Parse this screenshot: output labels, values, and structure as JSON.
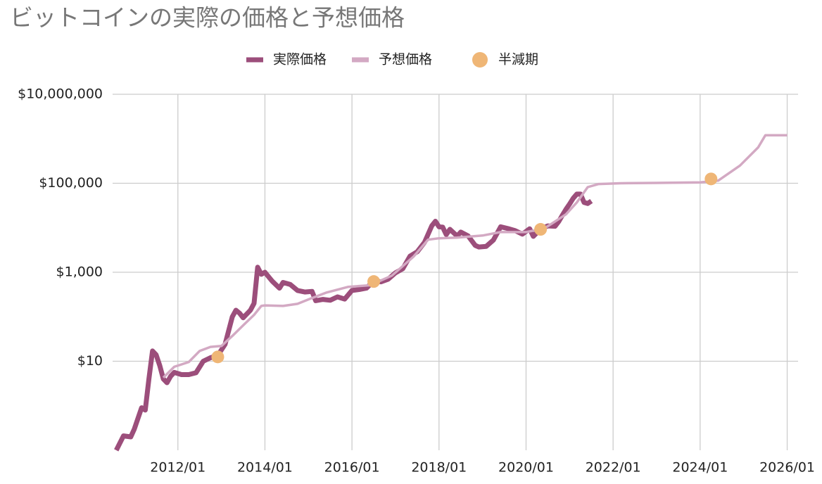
{
  "chart_data": {
    "type": "line",
    "title": "ビットコインの実際の価格と予想価格",
    "log_y": true,
    "grid": true,
    "legend": "top",
    "xlim": [
      "2010/07",
      "2026/04"
    ],
    "xticks": [
      "2012/01",
      "2014/01",
      "2016/01",
      "2018/01",
      "2020/01",
      "2022/01",
      "2024/01",
      "2026/01"
    ],
    "ylim": [
      0.1,
      10000000
    ],
    "yticks": [
      {
        "value": 10,
        "label": "$10"
      },
      {
        "value": 1000,
        "label": "$1,000"
      },
      {
        "value": 100000,
        "label": "$100,000"
      },
      {
        "value": 10000000,
        "label": "$10,000,000"
      }
    ],
    "series": [
      {
        "name": "実際価格",
        "color": "#9c4e7b",
        "style": "line",
        "x": [
          "2010/08",
          "2010/10",
          "2010/12",
          "2011/01",
          "2011/03",
          "2011/04",
          "2011/05",
          "2011/06",
          "2011/07",
          "2011/08",
          "2011/09",
          "2011/10",
          "2011/11",
          "2011/12",
          "2012/02",
          "2012/04",
          "2012/06",
          "2012/08",
          "2012/10",
          "2012/12",
          "2013/02",
          "2013/04",
          "2013/05",
          "2013/06",
          "2013/07",
          "2013/09",
          "2013/10",
          "2013/11",
          "2013/12",
          "2014/01",
          "2014/03",
          "2014/05",
          "2014/06",
          "2014/08",
          "2014/10",
          "2014/12",
          "2015/02",
          "2015/03",
          "2015/05",
          "2015/07",
          "2015/09",
          "2015/11",
          "2016/01",
          "2016/03",
          "2016/05",
          "2016/07",
          "2016/09",
          "2016/11",
          "2017/01",
          "2017/03",
          "2017/05",
          "2017/07",
          "2017/09",
          "2017/11",
          "2017/12",
          "2018/01",
          "2018/02",
          "2018/03",
          "2018/04",
          "2018/06",
          "2018/07",
          "2018/09",
          "2018/11",
          "2018/12",
          "2019/02",
          "2019/04",
          "2019/06",
          "2019/08",
          "2019/10",
          "2019/12",
          "2020/02",
          "2020/03",
          "2020/05",
          "2020/07",
          "2020/09",
          "2020/10",
          "2020/11",
          "2020/12",
          "2021/01",
          "2021/02",
          "2021/03",
          "2021/04",
          "2021/05",
          "2021/06",
          "2021/07"
        ],
        "values": [
          0.1,
          0.21,
          0.2,
          0.3,
          0.9,
          0.8,
          3.9,
          17,
          14,
          8,
          4,
          3.3,
          4.6,
          5.6,
          5,
          5,
          5.5,
          10,
          12,
          13.5,
          24,
          100,
          140,
          120,
          95,
          140,
          200,
          1300,
          900,
          1000,
          630,
          440,
          590,
          530,
          390,
          360,
          370,
          230,
          245,
          235,
          280,
          250,
          390,
          410,
          440,
          640,
          610,
          700,
          970,
          1200,
          2300,
          2900,
          4700,
          11000,
          14000,
          10500,
          10300,
          7000,
          9200,
          6500,
          8000,
          6600,
          4000,
          3700,
          3800,
          5300,
          10500,
          9600,
          8600,
          7200,
          9500,
          6400,
          9400,
          11000,
          10800,
          13800,
          19000,
          26000,
          34000,
          46000,
          57000,
          57000,
          37000,
          35000,
          40000
        ]
      },
      {
        "name": "予想価格",
        "color": "#d3a9c3",
        "style": "line",
        "x": [
          "2011/09",
          "2011/12",
          "2012/04",
          "2012/07",
          "2012/10",
          "2013/01",
          "2013/04",
          "2013/07",
          "2013/10",
          "2013/12",
          "2014/01",
          "2014/06",
          "2014/10",
          "2015/01",
          "2015/06",
          "2015/12",
          "2016/06",
          "2016/12",
          "2017/06",
          "2017/10",
          "2018/01",
          "2018/06",
          "2019/01",
          "2019/06",
          "2020/01",
          "2020/06",
          "2020/12",
          "2021/03",
          "2021/06",
          "2021/09",
          "2022/03",
          "2023/01",
          "2024/01",
          "2024/06",
          "2024/12",
          "2025/05",
          "2025/07",
          "2026/01"
        ],
        "values": [
          4.3,
          7.5,
          9.6,
          17,
          21,
          22,
          37,
          64,
          110,
          175,
          180,
          175,
          195,
          245,
          350,
          470,
          510,
          840,
          2250,
          5400,
          5800,
          6000,
          6700,
          8000,
          8000,
          9600,
          20000,
          37000,
          82000,
          96000,
          100000,
          102000,
          105000,
          115000,
          250000,
          640000,
          1200000,
          1200000
        ]
      },
      {
        "name": "半減期",
        "color": "#efb676",
        "style": "point",
        "x": [
          "2012/12",
          "2016/07",
          "2020/05",
          "2024/04"
        ],
        "values": [
          12.5,
          620,
          9200,
          125000
        ]
      }
    ]
  }
}
